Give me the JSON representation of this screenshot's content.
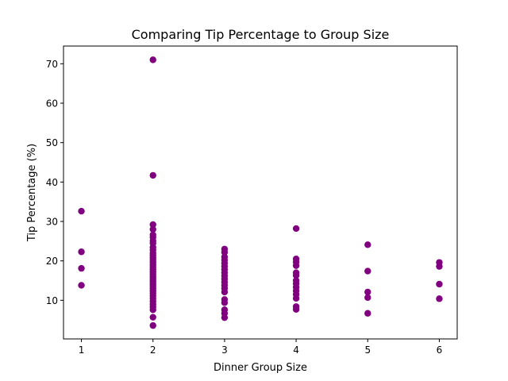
{
  "chart_data": {
    "type": "scatter",
    "title": "Comparing Tip Percentage to Group Size",
    "xlabel": "Dinner Group Size",
    "ylabel": "Tip Percentage (%)",
    "xlim": [
      0.75,
      6.25
    ],
    "ylim": [
      0.2,
      74.5
    ],
    "x_ticks": [
      1,
      2,
      3,
      4,
      5,
      6
    ],
    "y_ticks": [
      10,
      20,
      30,
      40,
      50,
      60,
      70
    ],
    "grid": false,
    "marker_color": "#800080",
    "series": [
      {
        "points": [
          [
            1,
            32.6
          ],
          [
            1,
            22.3
          ],
          [
            1,
            18.1
          ],
          [
            1,
            13.8
          ],
          [
            2,
            71.0
          ],
          [
            2,
            41.7
          ],
          [
            2,
            29.2
          ],
          [
            2,
            28.0
          ],
          [
            2,
            26.6
          ],
          [
            2,
            26.0
          ],
          [
            2,
            25.1
          ],
          [
            2,
            24.5
          ],
          [
            2,
            23.5
          ],
          [
            2,
            22.8
          ],
          [
            2,
            22.0
          ],
          [
            2,
            21.4
          ],
          [
            2,
            20.8
          ],
          [
            2,
            20.2
          ],
          [
            2,
            19.6
          ],
          [
            2,
            19.0
          ],
          [
            2,
            18.4
          ],
          [
            2,
            17.8
          ],
          [
            2,
            17.2
          ],
          [
            2,
            16.6
          ],
          [
            2,
            16.0
          ],
          [
            2,
            15.4
          ],
          [
            2,
            14.8
          ],
          [
            2,
            14.2
          ],
          [
            2,
            13.6
          ],
          [
            2,
            13.0
          ],
          [
            2,
            12.4
          ],
          [
            2,
            11.8
          ],
          [
            2,
            11.2
          ],
          [
            2,
            10.5
          ],
          [
            2,
            9.8
          ],
          [
            2,
            9.0
          ],
          [
            2,
            8.3
          ],
          [
            2,
            7.6
          ],
          [
            2,
            5.7
          ],
          [
            2,
            3.6
          ],
          [
            3,
            23.0
          ],
          [
            3,
            22.2
          ],
          [
            3,
            21.0
          ],
          [
            3,
            20.2
          ],
          [
            3,
            19.4
          ],
          [
            3,
            18.6
          ],
          [
            3,
            17.8
          ],
          [
            3,
            17.0
          ],
          [
            3,
            16.2
          ],
          [
            3,
            15.4
          ],
          [
            3,
            14.6
          ],
          [
            3,
            13.8
          ],
          [
            3,
            13.0
          ],
          [
            3,
            12.1
          ],
          [
            3,
            10.2
          ],
          [
            3,
            9.4
          ],
          [
            3,
            7.6
          ],
          [
            3,
            6.7
          ],
          [
            3,
            5.6
          ],
          [
            4,
            28.2
          ],
          [
            4,
            20.5
          ],
          [
            4,
            19.7
          ],
          [
            4,
            18.8
          ],
          [
            4,
            17.0
          ],
          [
            4,
            16.3
          ],
          [
            4,
            15.0
          ],
          [
            4,
            14.2
          ],
          [
            4,
            13.3
          ],
          [
            4,
            12.4
          ],
          [
            4,
            11.5
          ],
          [
            4,
            10.5
          ],
          [
            4,
            8.4
          ],
          [
            4,
            7.7
          ],
          [
            5,
            24.1
          ],
          [
            5,
            17.4
          ],
          [
            5,
            12.1
          ],
          [
            5,
            10.7
          ],
          [
            5,
            6.7
          ],
          [
            6,
            19.6
          ],
          [
            6,
            18.6
          ],
          [
            6,
            14.1
          ],
          [
            6,
            10.4
          ]
        ]
      }
    ]
  }
}
